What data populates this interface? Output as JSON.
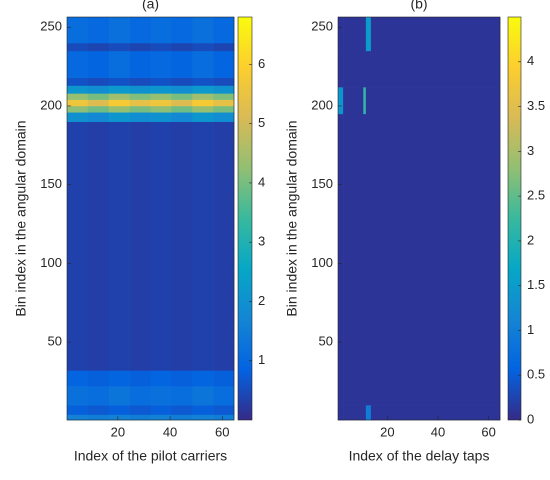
{
  "chart_data": [
    {
      "type": "heatmap",
      "title": "(a)",
      "x_label": "Index of the pilot carriers",
      "y_label": "Bin index in the angular domain",
      "x_bins": [
        0.5,
        8.5,
        16.5,
        24.5,
        32.5,
        40.5,
        48.5,
        56.5,
        64.5
      ],
      "y_bins": [
        0.5,
        4,
        10,
        22,
        32,
        190,
        196,
        200,
        204,
        208,
        213,
        218,
        235,
        240,
        256.5
      ],
      "values": [
        [
          1.6,
          1.5,
          1.6,
          1.5,
          1.6,
          1.5,
          1.6,
          1.5
        ],
        [
          0.8,
          0.7,
          0.8,
          0.7,
          0.8,
          0.7,
          0.8,
          0.7
        ],
        [
          1.2,
          1.1,
          1.3,
          1.1,
          1.2,
          1.1,
          1.3,
          1.1
        ],
        [
          0.9,
          0.8,
          0.9,
          0.8,
          0.9,
          0.8,
          0.9,
          0.8
        ],
        [
          0.35,
          0.3,
          0.35,
          0.3,
          0.35,
          0.3,
          0.35,
          0.3
        ],
        [
          2.0,
          1.8,
          2.1,
          1.9,
          2.0,
          1.8,
          2.1,
          1.9
        ],
        [
          4.2,
          3.9,
          4.3,
          4.0,
          4.2,
          3.9,
          4.3,
          4.0
        ],
        [
          5.6,
          5.2,
          5.8,
          5.4,
          5.6,
          5.2,
          5.8,
          5.4
        ],
        [
          4.3,
          4.0,
          4.4,
          4.1,
          4.3,
          4.0,
          4.4,
          4.1
        ],
        [
          2.1,
          1.9,
          2.2,
          2.0,
          2.1,
          1.9,
          2.2,
          2.0
        ],
        [
          0.6,
          0.5,
          0.6,
          0.5,
          0.6,
          0.5,
          0.6,
          0.5
        ],
        [
          1.0,
          0.9,
          1.1,
          0.9,
          1.0,
          0.9,
          1.1,
          0.9
        ],
        [
          0.5,
          0.4,
          0.5,
          0.4,
          0.5,
          0.4,
          0.5,
          0.4
        ],
        [
          1.1,
          1.0,
          1.2,
          1.0,
          1.1,
          1.0,
          1.2,
          1.0
        ]
      ],
      "xlim": [
        0.5,
        64.5
      ],
      "xticks": [
        20,
        40,
        60
      ],
      "ylim": [
        0.5,
        256.5
      ],
      "yticks": [
        50,
        100,
        150,
        200,
        250
      ],
      "clim": [
        0,
        6.8
      ],
      "cticks": [
        1,
        2,
        3,
        4,
        5,
        6
      ],
      "colormap": [
        "#352a87",
        "#0363e1",
        "#1485d4",
        "#06a7c6",
        "#38b99e",
        "#92bf73",
        "#d9ba56",
        "#fcce2e",
        "#f9fb0e"
      ]
    },
    {
      "type": "heatmap",
      "title": "(b)",
      "x_label": "Index of the delay taps",
      "y_label": "Bin index in the angular domain",
      "x_bins": [
        0.5,
        2.5,
        10.5,
        11.5,
        13.5,
        64.5
      ],
      "y_bins": [
        0.5,
        10,
        195,
        212,
        235,
        256.5
      ],
      "values": [
        [
          0.1,
          0.1,
          0.1,
          1.0,
          0.1
        ],
        [
          0.1,
          0.1,
          0.1,
          0.1,
          0.1
        ],
        [
          1.4,
          0.1,
          2.2,
          0.1,
          0.1
        ],
        [
          0.1,
          0.1,
          0.1,
          0.1,
          0.1
        ],
        [
          0.1,
          0.1,
          0.1,
          1.5,
          0.1
        ]
      ],
      "xlim": [
        0.5,
        64.5
      ],
      "xticks": [
        20,
        40,
        60
      ],
      "ylim": [
        0.5,
        256.5
      ],
      "yticks": [
        50,
        100,
        150,
        200,
        250
      ],
      "clim": [
        0,
        4.5
      ],
      "cticks": [
        0,
        0.5,
        1,
        1.5,
        2,
        2.5,
        3,
        3.5,
        4
      ],
      "colormap": [
        "#352a87",
        "#0363e1",
        "#1485d4",
        "#06a7c6",
        "#38b99e",
        "#92bf73",
        "#d9ba56",
        "#fcce2e",
        "#f9fb0e"
      ]
    }
  ]
}
